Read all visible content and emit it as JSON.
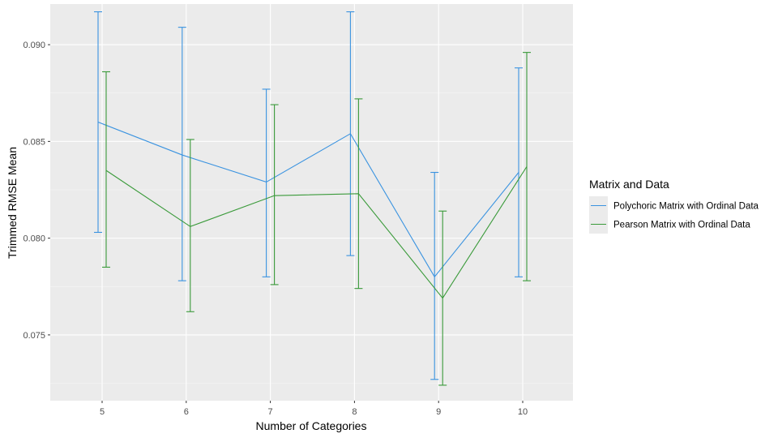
{
  "chart_data": {
    "type": "line",
    "xlabel": "Number of Categories",
    "ylabel": "Trimmed RMSE Mean",
    "categories": [
      "5",
      "6",
      "7",
      "8",
      "9",
      "10"
    ],
    "ylim": [
      0.0716,
      0.0921
    ],
    "yticks": [
      "0.075",
      "0.080",
      "0.085",
      "0.090"
    ],
    "ytick_values": [
      0.075,
      0.08,
      0.085,
      0.09
    ],
    "grid": true,
    "legend": {
      "title": "Matrix and Data",
      "position": "right"
    },
    "series": [
      {
        "name": "Polychoric Matrix with Ordinal Data",
        "color": "#3a93e0",
        "values": [
          0.086,
          0.0843,
          0.0829,
          0.0854,
          0.078,
          0.0834
        ],
        "error_low": [
          0.0803,
          0.0778,
          0.078,
          0.0791,
          0.0727,
          0.078
        ],
        "error_high": [
          0.0917,
          0.0909,
          0.0877,
          0.0917,
          0.0834,
          0.0888
        ]
      },
      {
        "name": "Pearson Matrix with Ordinal Data",
        "color": "#3a9a3a",
        "values": [
          0.0835,
          0.0806,
          0.0822,
          0.0823,
          0.0769,
          0.0837
        ],
        "error_low": [
          0.0785,
          0.0762,
          0.0776,
          0.0774,
          0.0724,
          0.0778
        ],
        "error_high": [
          0.0886,
          0.0851,
          0.0869,
          0.0872,
          0.0814,
          0.0896
        ]
      }
    ]
  }
}
